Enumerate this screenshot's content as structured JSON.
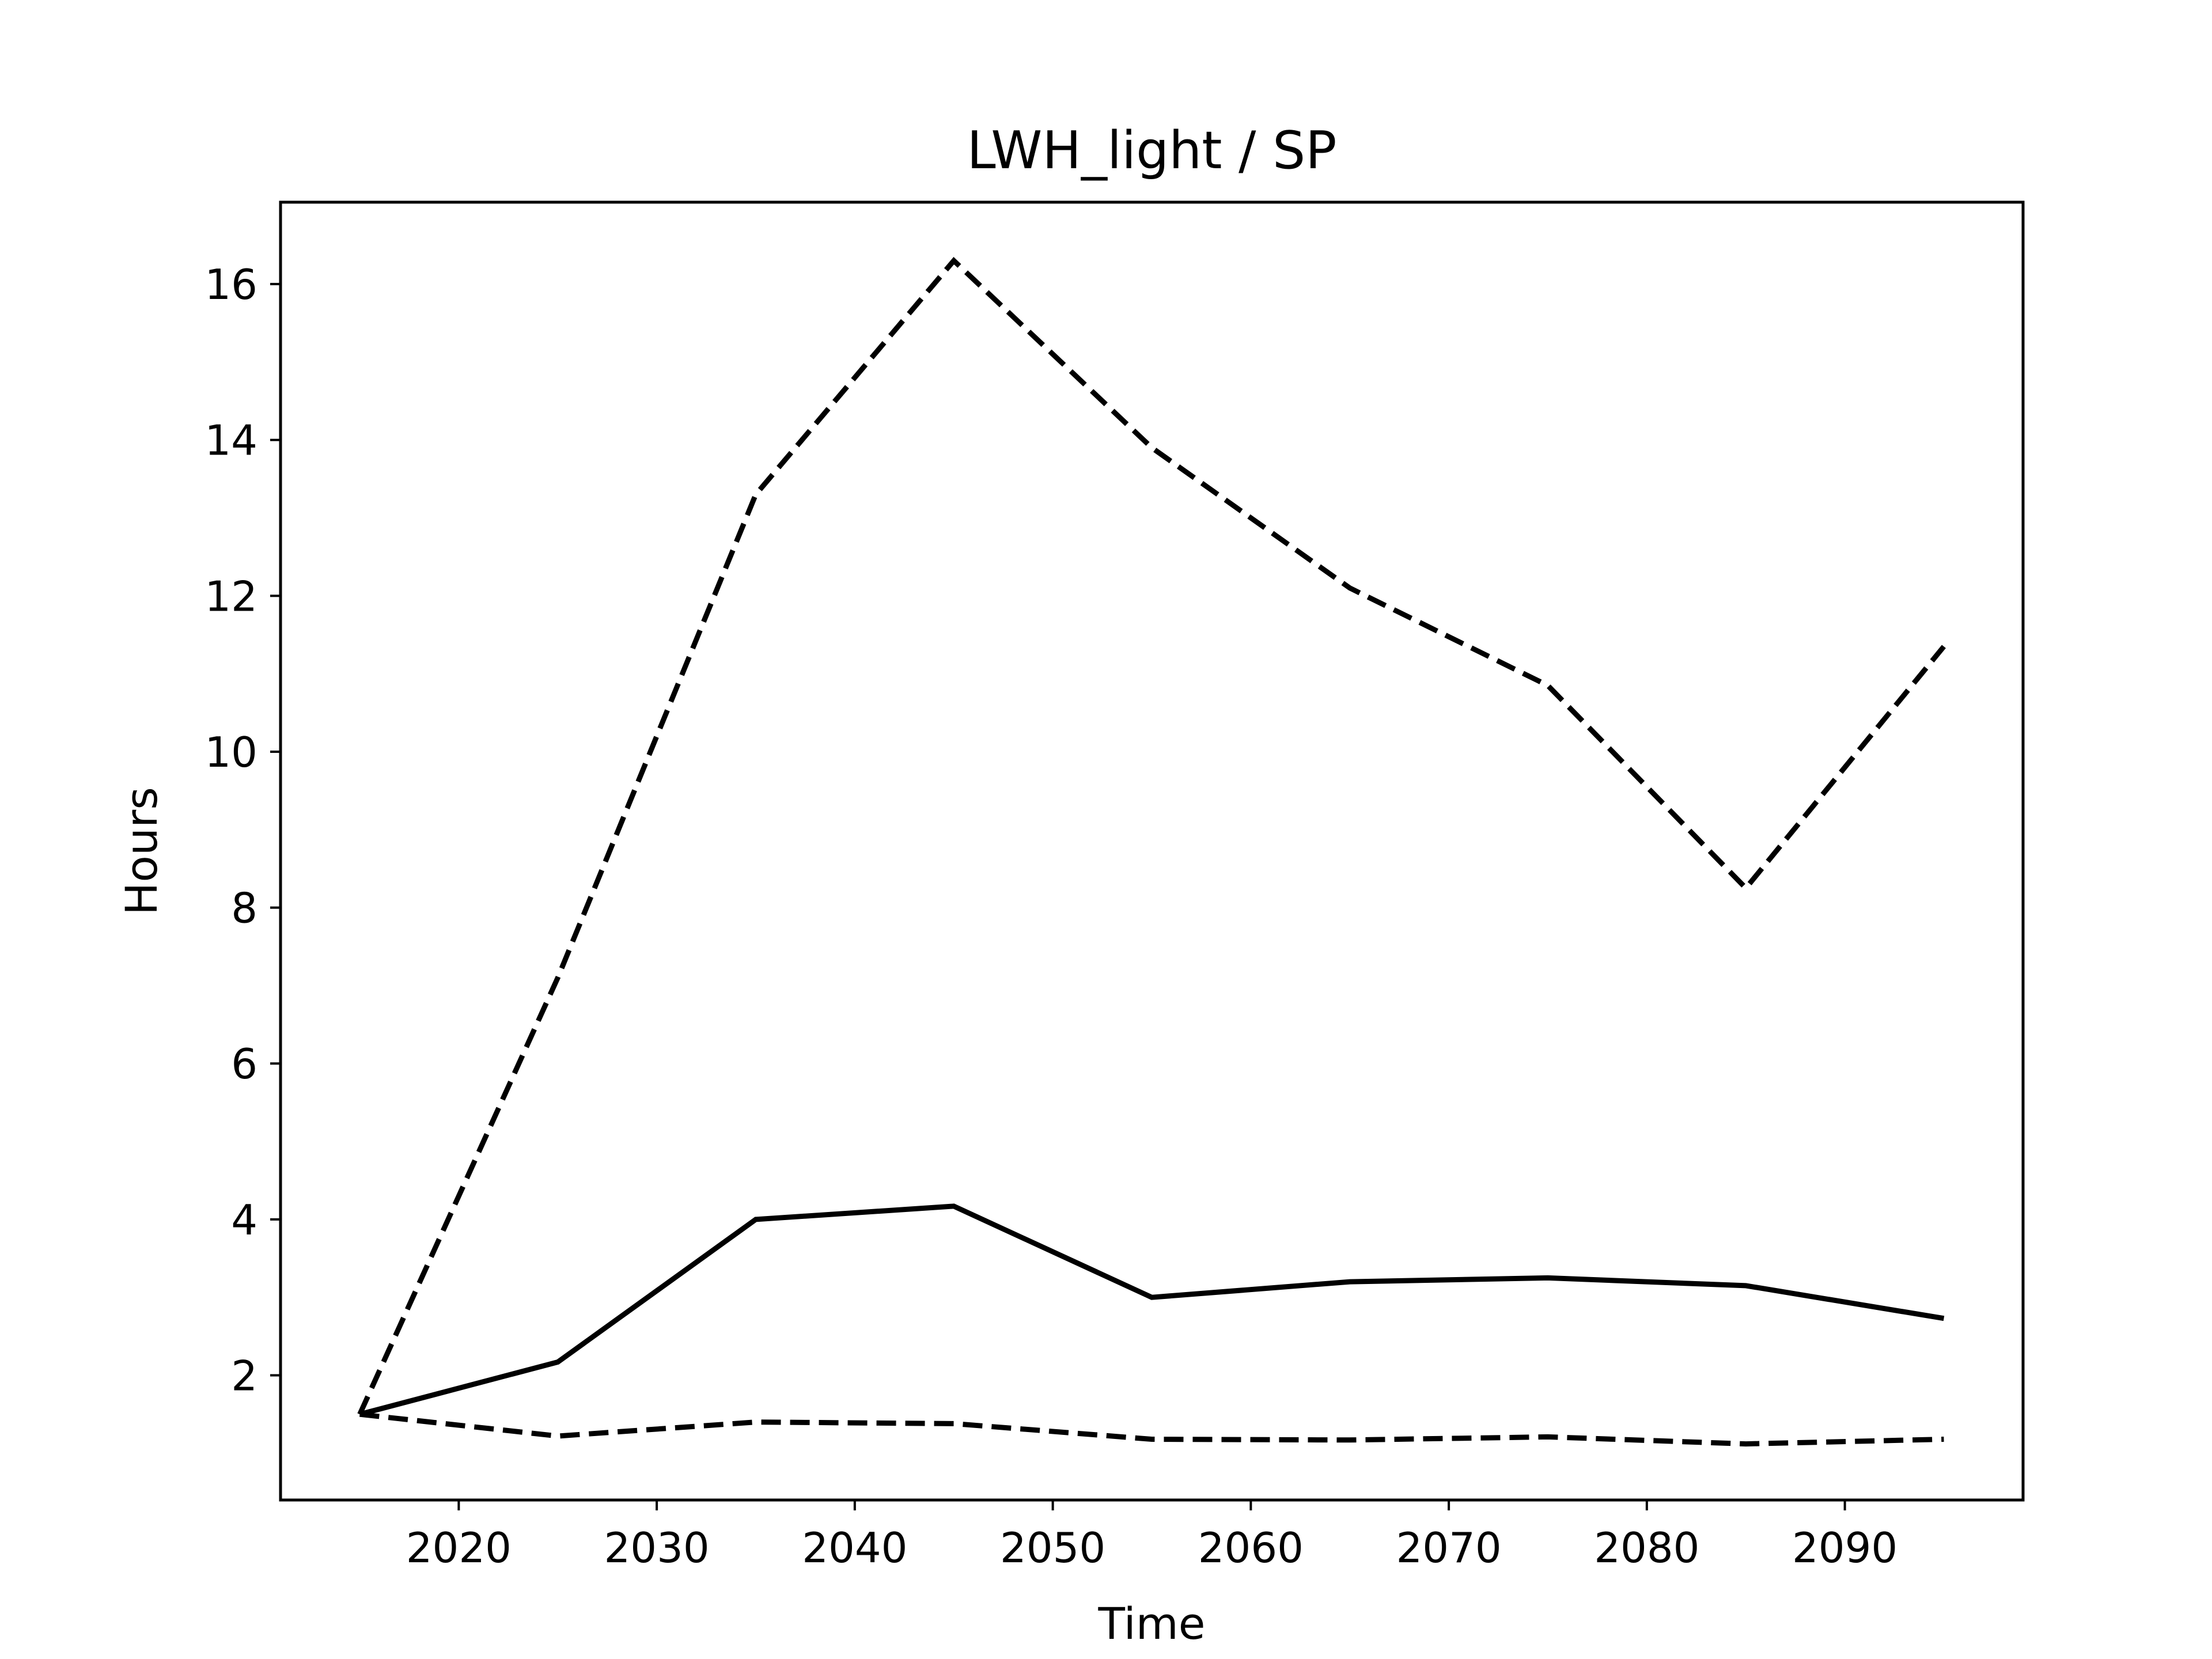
{
  "chart_data": {
    "type": "line",
    "title": "LWH_light / SP",
    "xlabel": "Time",
    "ylabel": "Hours",
    "xlim": [
      2011,
      2099
    ],
    "ylim": [
      0.4,
      17.05
    ],
    "xticks": [
      2020,
      2030,
      2040,
      2050,
      2060,
      2070,
      2080,
      2090
    ],
    "yticks": [
      2,
      4,
      6,
      8,
      10,
      12,
      14,
      16
    ],
    "grid": false,
    "legend": "none",
    "x": [
      2015,
      2025,
      2035,
      2045,
      2055,
      2065,
      2075,
      2085,
      2095
    ],
    "series": [
      {
        "style": "solid",
        "color": "#000000",
        "values": [
          1.5,
          2.17,
          4.0,
          4.17,
          3.0,
          3.2,
          3.25,
          3.15,
          2.73
        ]
      },
      {
        "style": "dashed",
        "color": "#000000",
        "values": [
          1.5,
          7.1,
          13.3,
          16.3,
          13.9,
          12.1,
          10.85,
          8.25,
          11.35
        ]
      },
      {
        "style": "dashed",
        "color": "#000000",
        "values": [
          1.5,
          1.22,
          1.4,
          1.38,
          1.18,
          1.17,
          1.21,
          1.12,
          1.18
        ]
      }
    ]
  }
}
